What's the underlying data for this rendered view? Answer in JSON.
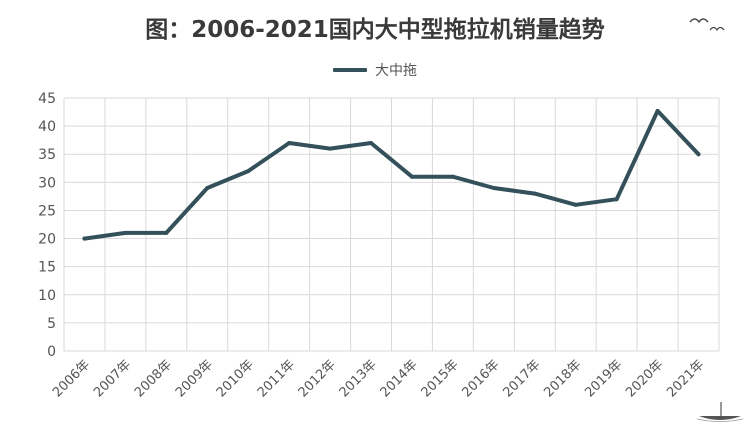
{
  "title": "图：2006-2021国内大中型拖拉机销量趋势",
  "colors": {
    "line": "#34505a",
    "grid": "#d9d9d9",
    "axis_text": "#555555"
  },
  "chart_data": {
    "type": "line",
    "title": "图：2006-2021国内大中型拖拉机销量趋势",
    "categories": [
      "2006年",
      "2007年",
      "2008年",
      "2009年",
      "2010年",
      "2011年",
      "2012年",
      "2013年",
      "2014年",
      "2015年",
      "2016年",
      "2017年",
      "2018年",
      "2019年",
      "2020年",
      "2021年"
    ],
    "series": [
      {
        "name": "大中拖",
        "values": [
          20,
          21,
          21,
          29,
          32,
          37,
          36,
          37,
          31,
          31,
          29,
          28,
          26,
          27,
          42.7,
          35
        ]
      }
    ],
    "ylim": [
      0,
      45
    ],
    "yticks": [
      0,
      5,
      10,
      15,
      20,
      25,
      30,
      35,
      40,
      45
    ],
    "grid": true,
    "legend": "top-center"
  }
}
